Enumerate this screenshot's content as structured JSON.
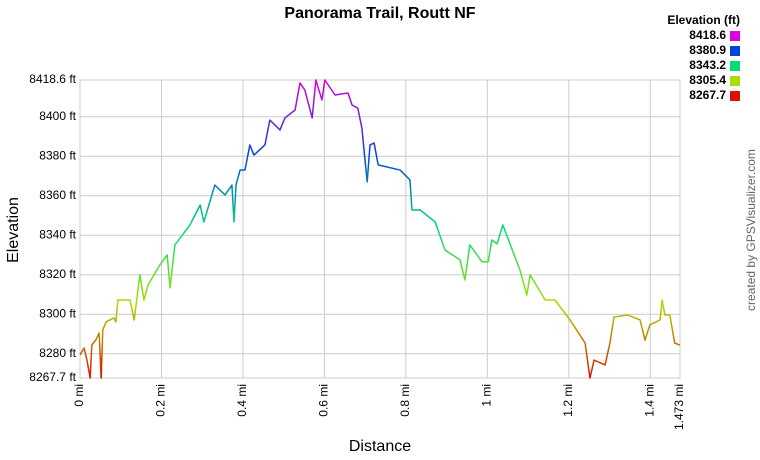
{
  "chart_data": {
    "type": "line",
    "title": "Panorama Trail, Routt NF",
    "x_label": "Distance",
    "y_label": "Elevation",
    "credit": "created by GPSVisualizer.com",
    "x": [
      0,
      0.01,
      0.017,
      0.025,
      0.029,
      0.039,
      0.047,
      0.052,
      0.056,
      0.064,
      0.083,
      0.088,
      0.093,
      0.123,
      0.133,
      0.147,
      0.157,
      0.167,
      0.196,
      0.214,
      0.221,
      0.233,
      0.27,
      0.295,
      0.304,
      0.331,
      0.356,
      0.373,
      0.378,
      0.383,
      0.393,
      0.405,
      0.417,
      0.427,
      0.454,
      0.466,
      0.491,
      0.503,
      0.528,
      0.54,
      0.552,
      0.57,
      0.579,
      0.594,
      0.601,
      0.626,
      0.658,
      0.668,
      0.682,
      0.692,
      0.705,
      0.712,
      0.722,
      0.732,
      0.786,
      0.81,
      0.815,
      0.835,
      0.872,
      0.896,
      0.933,
      0.945,
      0.957,
      0.987,
      1.002,
      1.011,
      1.024,
      1.038,
      1.08,
      1.097,
      1.105,
      1.142,
      1.166,
      1.203,
      1.24,
      1.252,
      1.262,
      1.289,
      1.301,
      1.311,
      1.345,
      1.375,
      1.387,
      1.399,
      1.424,
      1.429,
      1.436,
      1.448,
      1.46,
      1.473
    ],
    "series": [
      {
        "name": "Elevation",
        "values": [
          8279.4,
          8282.9,
          8276.8,
          8267.7,
          8284.4,
          8287.0,
          8290.5,
          8267.7,
          8292.0,
          8296.1,
          8298.1,
          8296.1,
          8307.2,
          8307.2,
          8297.1,
          8319.9,
          8307.2,
          8314.8,
          8324.9,
          8330.0,
          8313.3,
          8335.1,
          8345.2,
          8355.3,
          8346.7,
          8365.4,
          8360.4,
          8365.4,
          8346.7,
          8365.4,
          8373.0,
          8373.0,
          8385.7,
          8380.6,
          8385.7,
          8398.3,
          8393.3,
          8399.4,
          8403.4,
          8417.1,
          8413.5,
          8399.4,
          8418.6,
          8408.5,
          8418.6,
          8411.0,
          8412.0,
          8405.9,
          8404.4,
          8394.3,
          8367.0,
          8385.7,
          8386.7,
          8375.6,
          8373.0,
          8368.0,
          8352.8,
          8352.8,
          8346.7,
          8332.5,
          8327.5,
          8317.3,
          8335.1,
          8326.5,
          8326.5,
          8337.6,
          8335.6,
          8345.2,
          8322.4,
          8309.7,
          8319.9,
          8307.2,
          8307.2,
          8297.1,
          8285.4,
          8267.7,
          8276.8,
          8274.3,
          8285.4,
          8298.6,
          8299.6,
          8297.1,
          8286.9,
          8294.6,
          8297.1,
          8307.2,
          8299.6,
          8299.6,
          8285.4,
          8284.4
        ]
      }
    ],
    "xlim": [
      0,
      1.473
    ],
    "xticks": [
      {
        "value": 0,
        "label": "0 mi"
      },
      {
        "value": 0.2,
        "label": "0.2 mi"
      },
      {
        "value": 0.4,
        "label": "0.4 mi"
      },
      {
        "value": 0.6,
        "label": "0.6 mi"
      },
      {
        "value": 0.8,
        "label": "0.8 mi"
      },
      {
        "value": 1,
        "label": "1 mi"
      },
      {
        "value": 1.2,
        "label": "1.2 mi"
      },
      {
        "value": 1.4,
        "label": "1.4 mi"
      },
      {
        "value": 1.473,
        "label": "1.473 mi"
      }
    ],
    "ylim": [
      8267.7,
      8418.6
    ],
    "yticks": [
      {
        "value": 8267.7,
        "label": "8267.7 ft"
      },
      {
        "value": 8280,
        "label": "8280 ft"
      },
      {
        "value": 8300,
        "label": "8300 ft"
      },
      {
        "value": 8320,
        "label": "8320 ft"
      },
      {
        "value": 8340,
        "label": "8340 ft"
      },
      {
        "value": 8360,
        "label": "8360 ft"
      },
      {
        "value": 8380,
        "label": "8380 ft"
      },
      {
        "value": 8400,
        "label": "8400 ft"
      },
      {
        "value": 8418.6,
        "label": "8418.6 ft"
      }
    ],
    "grid": true,
    "legend": {
      "title": "Elevation (ft)",
      "items": [
        {
          "value": 8418.6,
          "color": "#dd00dd"
        },
        {
          "value": 8380.9,
          "color": "#0044dd"
        },
        {
          "value": 8343.2,
          "color": "#00dd77"
        },
        {
          "value": 8305.4,
          "color": "#aadd00"
        },
        {
          "value": 8267.7,
          "color": "#dd1100"
        }
      ]
    }
  }
}
